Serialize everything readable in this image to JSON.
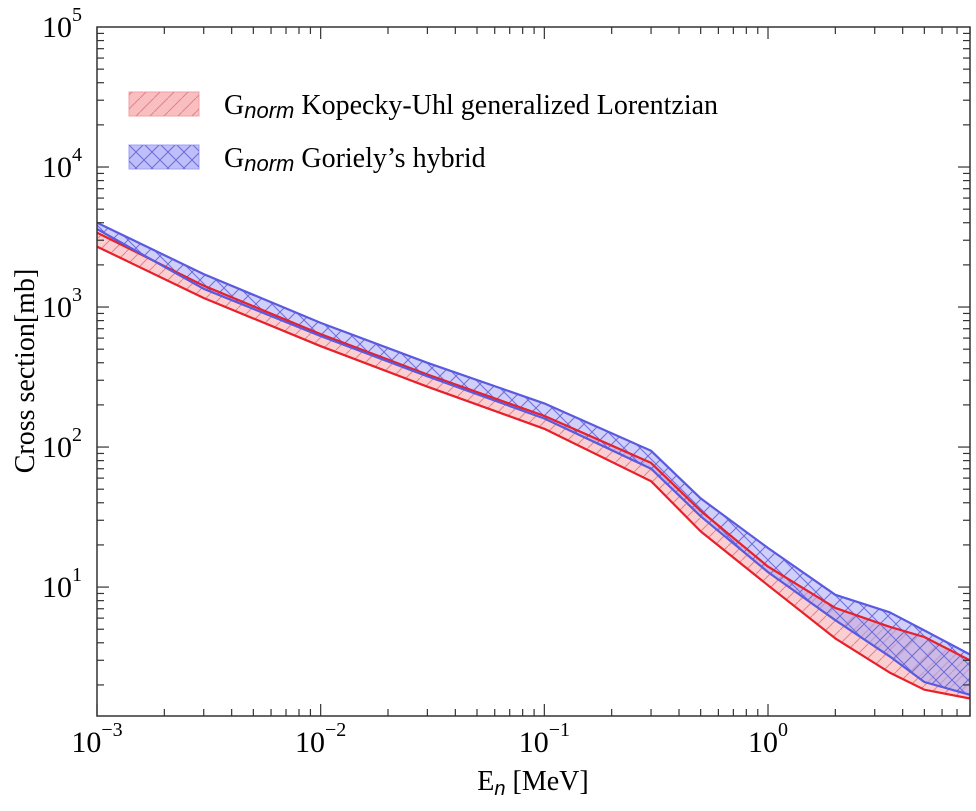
{
  "chart_data": {
    "type": "area",
    "title": "",
    "xlabel": "E",
    "xlabel_sub": "n",
    "xlabel_unit": " [MeV]",
    "ylabel": "Cross section[mb]",
    "xscale": "log",
    "yscale": "log",
    "xlim": [
      0.001,
      8
    ],
    "ylim": [
      1.2,
      100000
    ],
    "grid": false,
    "legend_placement": "top-left",
    "x_ticks": [
      {
        "base": "10",
        "exp": "-3",
        "value": 0.001
      },
      {
        "base": "10",
        "exp": "-2",
        "value": 0.01
      },
      {
        "base": "10",
        "exp": "-1",
        "value": 0.1
      },
      {
        "base": "10",
        "exp": "0",
        "value": 1
      }
    ],
    "y_ticks": [
      {
        "base": "10",
        "exp": "1",
        "value": 10
      },
      {
        "base": "10",
        "exp": "2",
        "value": 100
      },
      {
        "base": "10",
        "exp": "3",
        "value": 1000
      },
      {
        "base": "10",
        "exp": "4",
        "value": 10000
      },
      {
        "base": "10",
        "exp": "5",
        "value": 100000
      }
    ],
    "x": [
      0.001,
      0.003,
      0.01,
      0.03,
      0.1,
      0.3,
      0.5,
      1,
      2,
      3.5,
      5,
      8
    ],
    "series": [
      {
        "name_main": "G",
        "name_sub": "norm",
        "name_rest": " Kopecky-Uhl generalized Lorentzian",
        "color": "#e8202a",
        "fill": "#f7a8ab",
        "hatch": "diagonal",
        "upper": [
          3400,
          1420,
          640,
          330,
          167,
          77,
          35,
          14,
          7.1,
          5.2,
          4.4,
          3.0
        ],
        "lower": [
          2700,
          1160,
          525,
          270,
          135,
          57,
          25,
          10.3,
          4.3,
          2.45,
          1.85,
          1.6
        ]
      },
      {
        "name_main": "G",
        "name_sub": "norm",
        "name_rest": " Goriely’s hybrid",
        "color": "#5a5ae0",
        "fill": "#a8a8f5",
        "hatch": "cross",
        "upper": [
          4000,
          1720,
          770,
          400,
          205,
          94,
          43,
          19,
          8.8,
          6.6,
          4.9,
          3.3
        ],
        "lower": [
          3600,
          1350,
          620,
          320,
          160,
          70,
          32,
          12.8,
          5.8,
          3.2,
          2.1,
          1.7
        ]
      }
    ]
  }
}
